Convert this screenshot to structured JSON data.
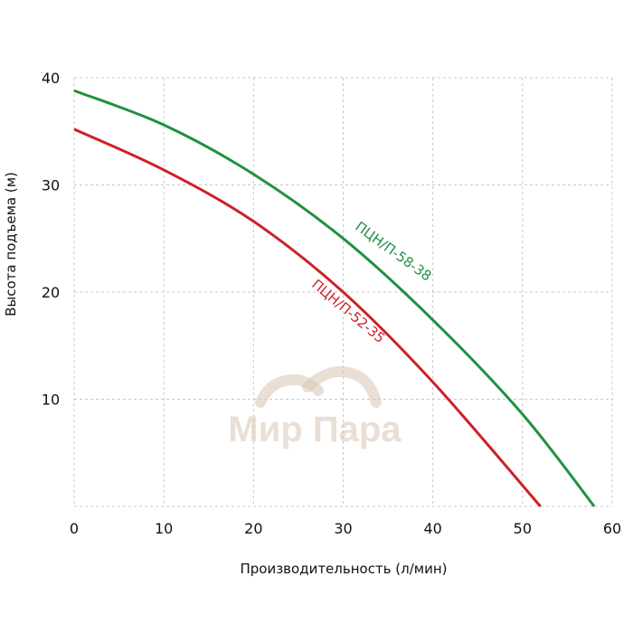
{
  "chart_data": {
    "type": "line",
    "xlabel": "Производительность (л/мин)",
    "ylabel": "Высота подъема (м)",
    "xlim": [
      0,
      60
    ],
    "ylim": [
      0,
      40
    ],
    "x_ticks": [
      "0",
      "10",
      "20",
      "30",
      "40",
      "50",
      "60"
    ],
    "y_ticks": [
      "10",
      "20",
      "30",
      "40"
    ],
    "x_tick_values": [
      0,
      10,
      20,
      30,
      40,
      50,
      60
    ],
    "y_tick_values": [
      10,
      20,
      30,
      40
    ],
    "grid": true,
    "series": [
      {
        "name": "ПЦН/П-58-38",
        "color": "#1f9142",
        "x": [
          0,
          10,
          20,
          30,
          40,
          50,
          58
        ],
        "y": [
          38.8,
          35.6,
          31.0,
          25.0,
          17.4,
          8.6,
          0
        ]
      },
      {
        "name": "ПЦН/П-52-35",
        "color": "#cc2127",
        "x": [
          0,
          10,
          20,
          30,
          40,
          52
        ],
        "y": [
          35.2,
          31.4,
          26.6,
          20.0,
          11.6,
          0
        ]
      }
    ]
  },
  "watermark": {
    "text": "Мир Пара",
    "color": "#d9c4b3"
  }
}
